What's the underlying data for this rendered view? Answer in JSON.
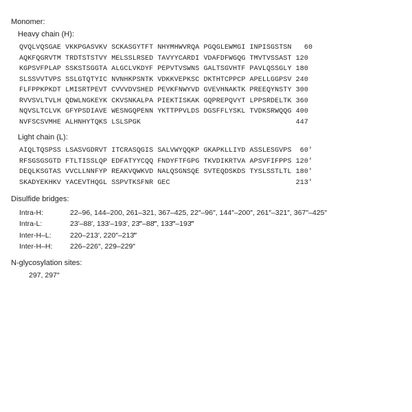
{
  "title": "Monomer:",
  "heavyChainLabel": "Heavy chain (H):",
  "lightChainLabel": "Light chain (L):",
  "heavyChain": "QVQLVQSGAE VKKPGASVKV SCKASGYTFT NHYMHWVRQA PGQGLEWMGI INPISGSTSN   60\nAQKFQGRVTM TRDTSTSTVY MELSSLRSED TAVYYCARDI VDAFDFWGQG TMVTVSSAST 120\nKGPSVFPLAP SSKSTSGGTA ALGCLVKDYF PEPVTVSWNS GALTSGVHTF PAVLQSSGLY 180\nSLSSVVTVPS SSLGTQTYIC NVNHKPSNTK VDKKVEPKSC DKTHTCPPCP APELLGGPSV 240\nFLFPPKPKDT LMISRTPEVT CVVVDVSHED PEVKFNWYVD GVEVHNAKTK PREEQYNSTY 300\nRVVSVLTVLH QDWLNGKEYK CKVSNKALPA PIEKTISKAK GQPREPQVYT LPPSRDELTK 360\nNQVSLTCLVK GFYPSDIAVE WESNGQPENN YKTTPPVLDS DGSFFLYSKL TVDKSRWQQG 400\nNVFSCSVMHE ALHNHYTQKS LSLSPGK                                     447",
  "lightChain": "AIQLTQSPSS LSASVGDRVT ITCRASQGIS SALVWYQQKP GKAPKLLIYD ASSLESGVPS  60'\nRFSGSGSGTD FTLTISSLQP EDFATYYCQQ FNDYFTFGPG TKVDIKRTVA APSVFIFPPS 120'\nDEQLKSGTAS VVCLLNNFYP REAKVQWKVD NALQSGNSQE SVTEQDSKDS TYSLSSTLTL 180'\nSKADYEKHKV YACEVTHQGL SSPVTKSFNR GEC                              213'",
  "disulfideLabel": "Disulfide bridges:",
  "bridges": {
    "intraH": {
      "label": "Intra-H:",
      "value": "22–96, 144–200, 261–321, 367–425, 22″–96″, 144″–200″, 261″–321″, 367″–425″"
    },
    "intraL": {
      "label": "Intra-L:",
      "value": "23′–88′, 133′–193′, 23‴–88‴, 133‴–193‴"
    },
    "interHL": {
      "label": "Inter-H–L:",
      "value": "220–213′, 220″–213‴"
    },
    "interHH": {
      "label": "Inter-H–H:",
      "value": "226–226″, 229–229″"
    }
  },
  "nglycLabel": "N-glycosylation sites:",
  "nglycSites": "297, 297″"
}
